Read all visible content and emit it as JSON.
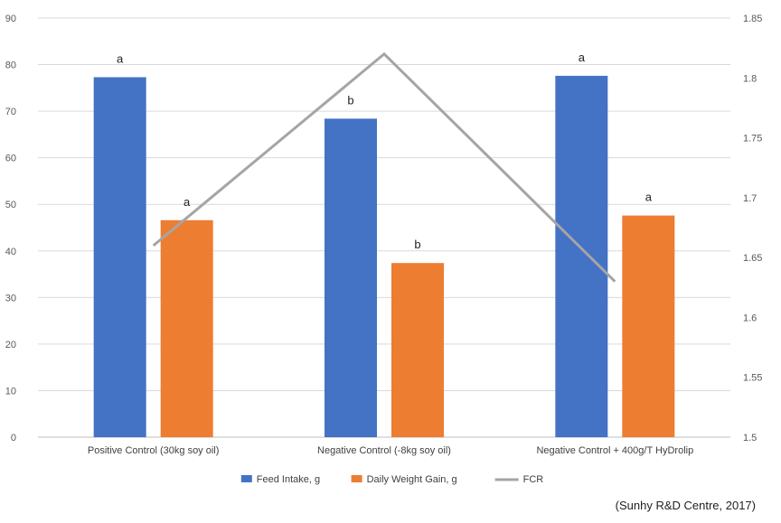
{
  "chart_data": {
    "type": "bar",
    "categories": [
      "Positive Control (30kg soy oil)",
      "Negative Control (-8kg soy oil)",
      "Negative Control + 400g/T HyDrolip"
    ],
    "series": [
      {
        "name": "Feed Intake, g",
        "values": [
          77.3,
          68.4,
          77.6
        ],
        "labels": [
          "a",
          "b",
          "a"
        ],
        "color": "#4472C4",
        "axis": "left",
        "kind": "bar"
      },
      {
        "name": "Daily Weight Gain, g",
        "values": [
          46.6,
          37.4,
          47.6
        ],
        "labels": [
          "a",
          "b",
          "a"
        ],
        "color": "#ED7D31",
        "axis": "left",
        "kind": "bar"
      },
      {
        "name": "FCR",
        "values": [
          1.66,
          1.82,
          1.63
        ],
        "color": "#A5A5A5",
        "axis": "right",
        "kind": "line"
      }
    ],
    "y_left": {
      "min": 0,
      "max": 90,
      "ticks": [
        "0",
        "10",
        "20",
        "30",
        "40",
        "50",
        "60",
        "70",
        "80",
        "90"
      ]
    },
    "y_right": {
      "min": 1.5,
      "max": 1.85,
      "ticks": [
        "1.5",
        "1.55",
        "1.6",
        "1.65",
        "1.7",
        "1.75",
        "1.8",
        "1.85"
      ]
    },
    "gridlines": true,
    "legend_position": "bottom",
    "source_note": "(Sunhy R&D Centre, 2017)"
  }
}
